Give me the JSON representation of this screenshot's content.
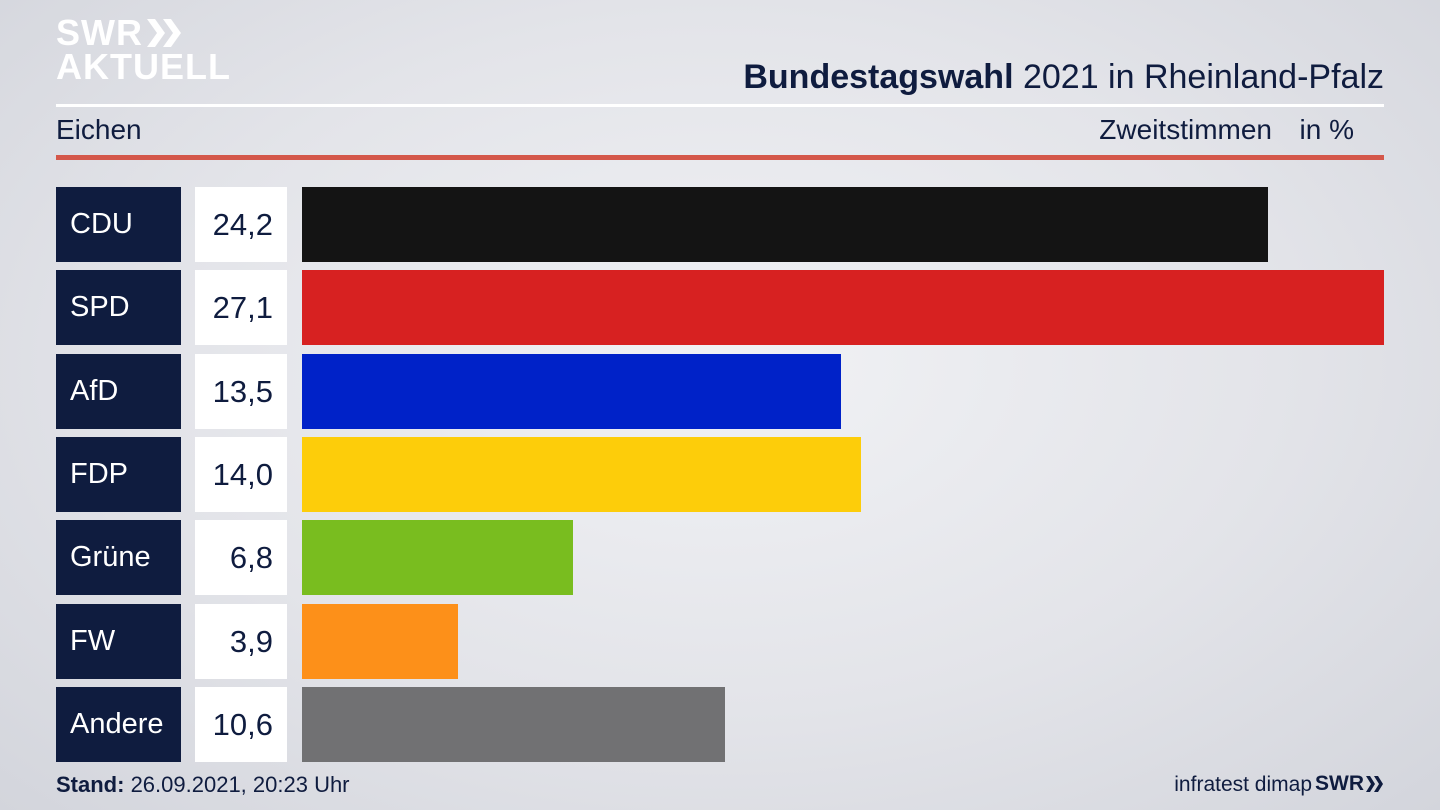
{
  "header": {
    "logo_line1": "SWR",
    "logo_line2": "AKTUELL",
    "title_bold": "Bundestagswahl",
    "title_rest": " 2021 in Rheinland-Pfalz",
    "location": "Eichen",
    "metric": "Zweitstimmen",
    "unit": "in %"
  },
  "colors": {
    "CDU": "#141414",
    "SPD": "#d72121",
    "AfD": "#0022c8",
    "FDP": "#fdcd0a",
    "Grüne": "#79bd1f",
    "FW": "#fd9019",
    "Andere": "#717173"
  },
  "chart_data": {
    "type": "bar",
    "orientation": "horizontal",
    "categories": [
      "CDU",
      "SPD",
      "AfD",
      "FDP",
      "Grüne",
      "FW",
      "Andere"
    ],
    "values": [
      24.2,
      27.1,
      13.5,
      14.0,
      6.8,
      3.9,
      10.6
    ],
    "value_labels": [
      "24,2",
      "27,1",
      "13,5",
      "14,0",
      "6,8",
      "3,9",
      "10,6"
    ],
    "xlim": [
      0,
      27.1
    ]
  },
  "footer": {
    "stand_label": "Stand:",
    "stand_value": " 26.09.2021, 20:23 Uhr",
    "source": "infratest dimap",
    "swr": "SWR"
  }
}
